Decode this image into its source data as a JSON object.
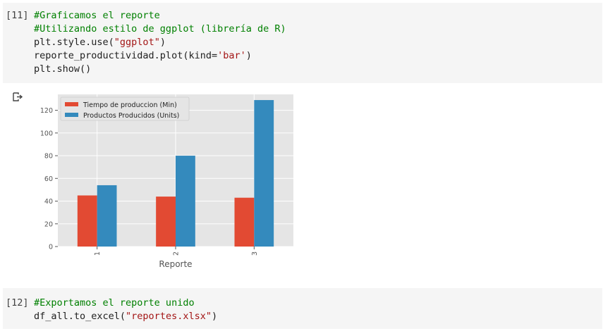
{
  "cells": [
    {
      "prompt": "[11]",
      "lines": [
        [
          {
            "t": "#Graficamos el reporte",
            "c": "cm"
          }
        ],
        [
          {
            "t": "#Utilizando estilo de ggplot (librería de R)",
            "c": "cm"
          }
        ],
        [
          {
            "t": "plt.style.use(",
            "c": ""
          },
          {
            "t": "\"ggplot\"",
            "c": "st"
          },
          {
            "t": ")",
            "c": ""
          }
        ],
        [
          {
            "t": "reporte_productividad.plot(kind=",
            "c": ""
          },
          {
            "t": "'bar'",
            "c": "st"
          },
          {
            "t": ")",
            "c": ""
          }
        ],
        [
          {
            "t": "plt.show()",
            "c": ""
          }
        ]
      ]
    },
    {
      "prompt": "[12]",
      "lines": [
        [
          {
            "t": "#Exportamos el reporte unido",
            "c": "cm"
          }
        ],
        [
          {
            "t": "df_all.to_excel(",
            "c": ""
          },
          {
            "t": "\"reportes.xlsx\"",
            "c": "st"
          },
          {
            "t": ")",
            "c": ""
          }
        ]
      ]
    }
  ],
  "output_icon": "output-arrow-icon",
  "chart_data": {
    "type": "bar",
    "categories": [
      "1",
      "2",
      "3"
    ],
    "series": [
      {
        "name": "Tiempo de produccion (Min)",
        "values": [
          45,
          44,
          43
        ],
        "color": "#e24a33"
      },
      {
        "name": "Productos Producidos (Units)",
        "values": [
          54,
          80,
          129
        ],
        "color": "#348abd"
      }
    ],
    "xlabel": "Reporte",
    "ylabel": "",
    "ylim": [
      0,
      134
    ],
    "yticks": [
      0,
      20,
      40,
      60,
      80,
      100,
      120
    ],
    "grid": true,
    "legend": "top-left",
    "background": "#e5e5e5"
  }
}
